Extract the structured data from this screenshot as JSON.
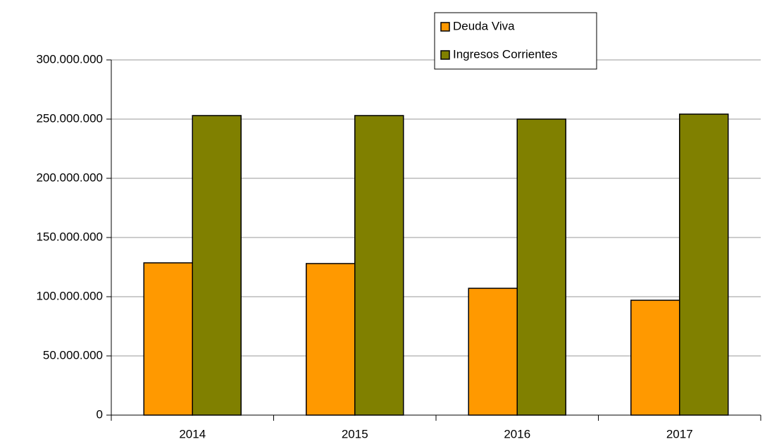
{
  "chart_data": {
    "type": "bar",
    "categories": [
      "2014",
      "2015",
      "2016",
      "2017"
    ],
    "series": [
      {
        "name": "Deuda Viva",
        "color": "#ff9900",
        "values": [
          128600000,
          128000000,
          107100000,
          97000000
        ]
      },
      {
        "name": "Ingresos Corrientes",
        "color": "#808000",
        "values": [
          253000000,
          253000000,
          250000000,
          254200000
        ]
      }
    ],
    "ylim": [
      0,
      300000000
    ],
    "yticks": [
      0,
      {
        "value": 50000000,
        "label": "50.000.000"
      },
      {
        "value": 100000000,
        "label": "100.000.000"
      },
      {
        "value": 150000000,
        "label": "150.000.000"
      },
      {
        "value": 200000000,
        "label": "200.000.000"
      },
      {
        "value": 250000000,
        "label": "250.000.000"
      },
      {
        "value": 300000000,
        "label": "300.000.000"
      }
    ],
    "grid": true,
    "legend": "top"
  }
}
